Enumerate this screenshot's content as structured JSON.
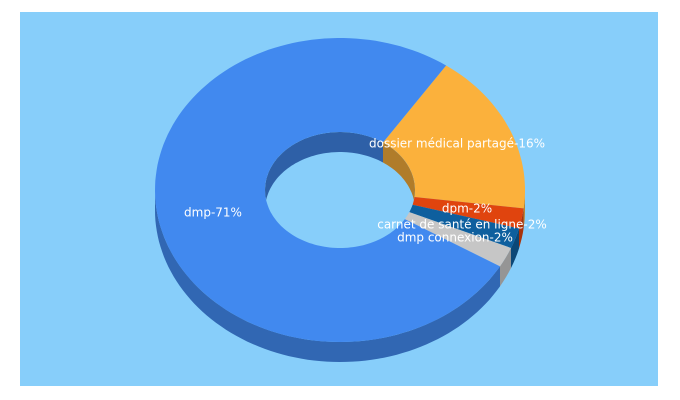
{
  "chart_data": {
    "type": "pie3d-donut",
    "values": [
      16,
      2,
      2,
      2,
      71
    ],
    "value_labels": [
      "dossier médical partagé-16%",
      "dpm-2%",
      "carnet de santé en ligne-2%",
      "dmp connexion-2%",
      "dmp-71%"
    ],
    "colors": [
      "#fbb13c",
      "#e0440e",
      "#0e5f9e",
      "#c6c6c6",
      "#4189ef"
    ]
  }
}
